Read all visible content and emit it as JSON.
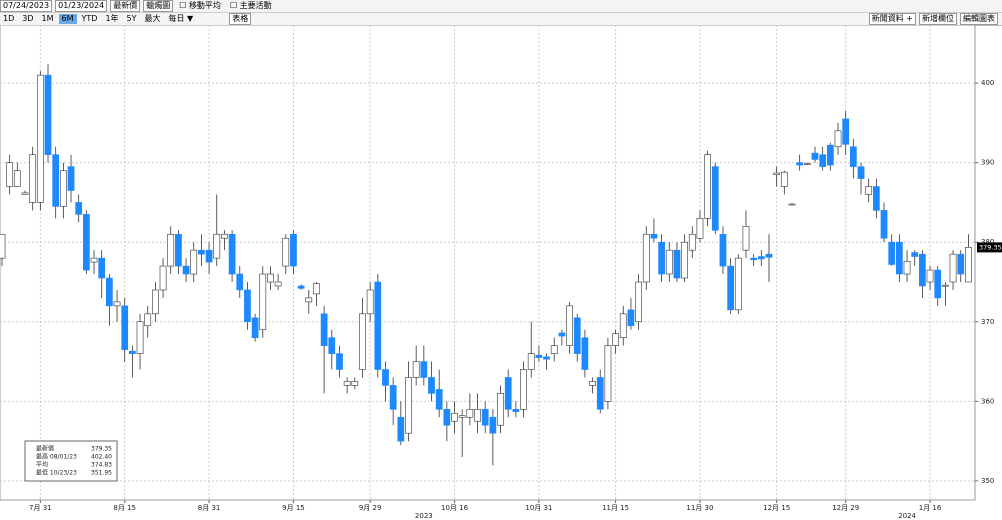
{
  "toolbar": {
    "start_date": "07/24/2023",
    "end_date": "01/23/2024",
    "field": "最新價",
    "chart_kind": "蠟燭圖",
    "moving_average": "移動平均",
    "events": "主要活動",
    "periods": [
      "1D",
      "3D",
      "1M",
      "6M",
      "YTD",
      "1年",
      "5Y",
      "最大",
      "每日 ▼"
    ],
    "table": "表格",
    "news": "新聞資料 +",
    "add_field": "新增欄位",
    "edit_chart": "編輯圖表"
  },
  "chart_data": {
    "type": "candlestick",
    "categories": [
      null,
      null,
      null,
      null,
      null,
      "7月 31",
      null,
      null,
      null,
      null,
      null,
      null,
      null,
      null,
      null,
      null,
      "8月 15",
      null,
      null,
      null,
      null,
      null,
      null,
      null,
      null,
      null,
      null,
      "8月 31",
      null,
      null,
      null,
      null,
      null,
      null,
      null,
      null,
      null,
      null,
      "9月 15",
      null,
      null,
      null,
      null,
      null,
      null,
      null,
      null,
      null,
      "9月 29",
      null,
      null,
      null,
      null,
      null,
      null,
      null,
      null,
      null,
      null,
      "10月 16",
      null,
      null,
      null,
      null,
      null,
      null,
      null,
      null,
      null,
      null,
      "10月 31",
      null,
      null,
      null,
      null,
      null,
      null,
      null,
      null,
      null,
      "11月 15",
      null,
      null,
      null,
      null,
      null,
      null,
      null,
      null,
      null,
      null,
      "11月 30",
      null,
      null,
      null,
      null,
      null,
      null,
      null,
      null,
      null,
      "12月 15",
      null,
      null,
      null,
      null,
      null,
      null,
      null,
      null,
      "12月 29",
      null,
      null,
      null,
      null,
      null,
      null,
      null,
      null,
      null,
      null,
      "1月 16",
      null,
      null,
      null,
      null,
      null
    ],
    "year_labels": [
      {
        "value": 55,
        "label": "2023"
      },
      {
        "value": 118,
        "label": "2024"
      }
    ],
    "open": [
      378,
      387,
      387,
      386,
      385,
      385,
      401,
      391,
      384.5,
      389.5,
      385,
      383.5,
      377.5,
      378,
      375.5,
      372,
      372,
      366.3,
      366,
      369.5,
      371,
      374,
      377,
      381,
      377,
      376,
      379,
      379,
      378,
      380.5,
      381,
      376,
      374,
      370.5,
      369,
      375,
      374.5,
      377,
      381,
      374.5,
      372.5,
      373.5,
      371,
      368,
      366,
      362,
      362,
      364,
      371,
      375,
      364,
      362,
      358,
      356,
      363,
      365,
      363,
      361.5,
      359,
      357.5,
      358,
      358,
      357.5,
      359,
      358,
      357,
      363,
      359,
      359,
      364,
      365.8,
      365.6,
      366,
      368.6,
      367,
      370.5,
      368,
      362,
      363,
      360,
      367,
      368,
      371.5,
      370,
      375,
      381,
      380,
      376,
      379,
      375.5,
      379,
      380.5,
      383,
      389.5,
      381,
      377,
      371.5,
      379,
      378,
      378.2,
      378.5,
      388.5,
      387,
      384.7,
      390,
      389.8,
      391.2,
      391,
      392.2,
      392,
      395.5,
      392,
      389.5,
      386,
      387,
      384,
      380,
      380,
      376,
      378.7,
      378.5,
      375,
      376.5,
      374.5,
      375,
      378.5,
      375
    ],
    "high": [
      381,
      391,
      390,
      386.5,
      392,
      401.5,
      402.4,
      392,
      390,
      391,
      386,
      384,
      379,
      379,
      376,
      374,
      373,
      367,
      371,
      372,
      375,
      378,
      382,
      381.5,
      378,
      380,
      381,
      380,
      386,
      381.5,
      381.5,
      377,
      375,
      371,
      377,
      377,
      376,
      381,
      381.5,
      374.7,
      374,
      375,
      372,
      369,
      367,
      363,
      363,
      373,
      375,
      376,
      365,
      363,
      360,
      365,
      367,
      367,
      365,
      364,
      360,
      360,
      359,
      361,
      361,
      360,
      359,
      362,
      364,
      360,
      365,
      370,
      367,
      366,
      368,
      369,
      372.5,
      371,
      369,
      363,
      364,
      368,
      369,
      372,
      373,
      376,
      382,
      383,
      381,
      380,
      380,
      381,
      382,
      384,
      391.5,
      390,
      382,
      378,
      378.5,
      384,
      378.5,
      379,
      381,
      389.5,
      389,
      384.9,
      391,
      390,
      392,
      392,
      392.5,
      395,
      396.5,
      393,
      390,
      388,
      388,
      385,
      381,
      381,
      379,
      379,
      379,
      377,
      377,
      375,
      379,
      379,
      381
    ],
    "low": [
      377,
      386,
      387,
      386,
      384,
      384,
      390,
      383,
      383,
      385,
      382.5,
      376,
      376,
      373,
      369.5,
      370,
      365,
      363,
      364,
      368,
      370,
      373,
      376,
      376,
      375,
      375,
      377,
      376,
      377,
      379,
      375,
      373,
      369,
      367.5,
      368,
      374,
      374,
      376,
      376,
      374,
      371,
      372,
      361,
      364,
      363,
      361,
      361.5,
      363,
      370,
      363,
      360,
      357,
      354.5,
      355,
      362,
      362,
      360,
      358,
      355,
      356,
      353,
      357,
      356,
      356,
      351.95,
      356,
      358,
      358,
      358,
      363,
      365,
      364,
      365,
      367,
      366,
      365,
      363,
      361,
      358.5,
      359,
      366,
      367,
      369,
      369,
      374,
      380,
      375,
      375,
      375,
      375,
      378,
      380,
      382,
      381,
      376,
      371,
      371,
      378,
      377,
      377,
      375,
      387,
      386,
      384.6,
      389,
      389.7,
      390,
      389,
      389,
      391,
      391,
      388,
      386,
      385,
      383,
      380,
      377,
      375,
      375,
      377,
      373,
      374,
      372,
      372,
      374,
      375,
      375
    ],
    "close": [
      381,
      390,
      389,
      386.2,
      391,
      401,
      391,
      384.5,
      389,
      386.5,
      383.5,
      376.5,
      378,
      375.5,
      372,
      372.5,
      366.5,
      366,
      370,
      371,
      374,
      377,
      381,
      377,
      376,
      379,
      378.5,
      377.5,
      381,
      381,
      376,
      374,
      370,
      368,
      376,
      376,
      375,
      380.5,
      377,
      374.2,
      373,
      374.8,
      367,
      366,
      364,
      362.5,
      362.5,
      371,
      374,
      364,
      362,
      359,
      355,
      363,
      365,
      363,
      361,
      359,
      357,
      358.5,
      358.2,
      359,
      359,
      357,
      356,
      361,
      359,
      358.7,
      364,
      366,
      365.5,
      365.3,
      367,
      368.2,
      372,
      366,
      364,
      362.5,
      359,
      367,
      368.5,
      371,
      369.5,
      375,
      381,
      380.5,
      376,
      379,
      375.5,
      380,
      381,
      383,
      391,
      381.5,
      377,
      371.5,
      378,
      382,
      377.8,
      377.9,
      378.1,
      388.7,
      388.8,
      384.8,
      389.7,
      389.9,
      390.4,
      389.5,
      389.7,
      394,
      392.3,
      389.5,
      388,
      387,
      384,
      380.5,
      377.2,
      376,
      377.6,
      378.2,
      374.5,
      376.5,
      373,
      374.6,
      378.5,
      376,
      379.35
    ],
    "up_color": "#ffffff",
    "down_color": "#1e88ff",
    "xlim": [
      -0.26,
      126.86
    ],
    "ylim": [
      347.6,
      407.3
    ],
    "yticks": [
      350,
      360,
      370,
      380,
      390,
      400
    ],
    "grid": true,
    "last_price": {
      "value": 379.35,
      "label": "379.35"
    },
    "legend": [
      {
        "name": "最新價",
        "value": 379.35,
        "label": "379.35"
      },
      {
        "name": "最高 08/01/23",
        "value": 402.4,
        "label": "402.40"
      },
      {
        "name": "平均",
        "value": 374.83,
        "label": "374.83"
      },
      {
        "name": "最低 10/23/23",
        "value": 351.95,
        "label": "351.95"
      }
    ]
  }
}
